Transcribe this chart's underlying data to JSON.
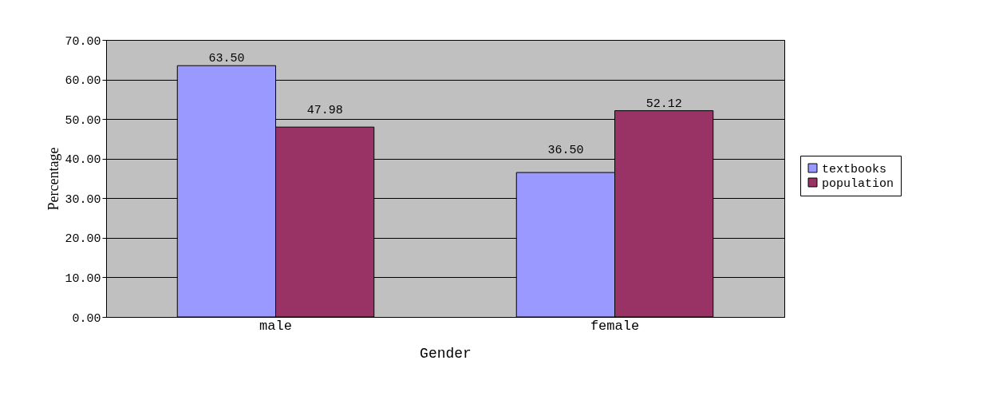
{
  "chart_data": {
    "type": "bar",
    "xlabel": "Gender",
    "ylabel": "Percentage",
    "categories": [
      "male",
      "female"
    ],
    "series": [
      {
        "name": "textbooks",
        "color": "#9999ff",
        "values": [
          63.5,
          36.5
        ],
        "value_labels": [
          "63.50",
          "36.50"
        ]
      },
      {
        "name": "population",
        "color": "#993366",
        "values": [
          47.98,
          52.12
        ],
        "value_labels": [
          "47.98",
          "52.12"
        ]
      }
    ],
    "ylim": [
      0,
      70
    ],
    "yticks": [
      {
        "value": 0,
        "label": "0.00"
      },
      {
        "value": 10,
        "label": "10.00"
      },
      {
        "value": 20,
        "label": "20.00"
      },
      {
        "value": 30,
        "label": "30.00"
      },
      {
        "value": 40,
        "label": "40.00"
      },
      {
        "value": 50,
        "label": "50.00"
      },
      {
        "value": 60,
        "label": "60.00"
      },
      {
        "value": 70,
        "label": "70.00"
      }
    ],
    "grid": "y",
    "legend": "right"
  }
}
